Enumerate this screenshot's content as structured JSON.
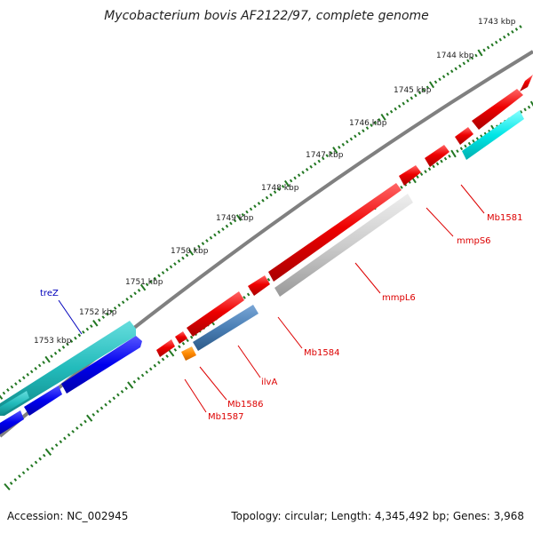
{
  "title": "Mycobacterium bovis AF2122/97, complete genome",
  "footer": {
    "accession": "Accession: NC_002945",
    "stats": "Topology: circular; Length: 4,345,492 bp; Genes: 3,968"
  },
  "kbp_labels": [
    "1743 kbp",
    "1744 kbp",
    "1745 kbp",
    "1746 kbp",
    "1747 kbp",
    "1748 kbp",
    "1749 kbp",
    "1750 kbp",
    "1751 kbp",
    "1752 kbp",
    "1753 kbp"
  ],
  "gene_labels": [
    {
      "text": "Mb1581",
      "color": "#dd0000"
    },
    {
      "text": "mmpS6",
      "color": "#dd0000"
    },
    {
      "text": "mmpL6",
      "color": "#dd0000"
    },
    {
      "text": "Mb1584",
      "color": "#dd0000"
    },
    {
      "text": "ilvA",
      "color": "#dd0000"
    },
    {
      "text": "Mb1586",
      "color": "#dd0000"
    },
    {
      "text": "Mb1587",
      "color": "#dd0000"
    },
    {
      "text": "treZ",
      "color": "#0000bb"
    }
  ],
  "colors": {
    "backbone": "#808080",
    "forward_gene": "#ee0000",
    "reverse_teal": "#22bbbb",
    "reverse_blue": "#0000ee",
    "cyan_gene": "#00dddd",
    "grey_gene": "#c8c8c8",
    "steel_gene": "#4a7fb5",
    "orange_gene": "#ff8800",
    "tick": "#227722"
  }
}
